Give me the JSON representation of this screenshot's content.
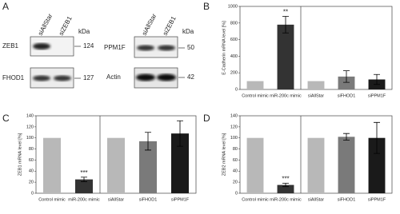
{
  "panel_a": {
    "panel": "A",
    "left": {
      "lanes": [
        "siAllStar",
        "siZEB1"
      ],
      "unit": "kDa",
      "rows": [
        {
          "name": "ZEB1",
          "kda": "124"
        },
        {
          "name": "FHOD1",
          "kda": "127"
        }
      ]
    },
    "right": {
      "lanes": [
        "siAllStar",
        "siZEB1"
      ],
      "unit": "kDa",
      "rows": [
        {
          "name": "PPM1F",
          "kda": "50"
        },
        {
          "name": "Actin",
          "kda": "42"
        }
      ]
    }
  },
  "chart_data": [
    {
      "type": "bar",
      "panel": "B",
      "y_label": "E-Cadherin mRNA level [%]",
      "categories": [
        "Control mimic",
        "miR-200c mimic",
        "siAllStar",
        "siFHOD1",
        "siPPM1F"
      ],
      "values": [
        100,
        780,
        100,
        155,
        120
      ],
      "errors": [
        0,
        100,
        0,
        70,
        60
      ],
      "colors": [
        "#b8b8b8",
        "#333333",
        "#b8b8b8",
        "#7a7a7a",
        "#1a1a1a"
      ],
      "significance": [
        null,
        "**",
        null,
        null,
        null
      ],
      "ylim": [
        0,
        1000
      ],
      "yticks": [
        0,
        200,
        400,
        600,
        800,
        1000
      ]
    },
    {
      "type": "bar",
      "panel": "C",
      "y_label": "ZEB1 mRNA level [%]",
      "categories": [
        "Control mimic",
        "miR-200c mimic",
        "siAllStar",
        "siFHOD1",
        "siPPM1F"
      ],
      "values": [
        100,
        25,
        100,
        94,
        108
      ],
      "errors": [
        0,
        4,
        0,
        16,
        23
      ],
      "colors": [
        "#b8b8b8",
        "#333333",
        "#b8b8b8",
        "#7a7a7a",
        "#1a1a1a"
      ],
      "significance": [
        null,
        "***",
        null,
        null,
        null
      ],
      "ylim": [
        0,
        140
      ],
      "yticks": [
        0,
        20,
        40,
        60,
        80,
        100,
        120,
        140
      ]
    },
    {
      "type": "bar",
      "panel": "D",
      "y_label": "ZEB2 mRNA level [%]",
      "categories": [
        "Control mimic",
        "miR-200c mimic",
        "siAllStar",
        "siFHOD1",
        "siPPM1F"
      ],
      "values": [
        100,
        15,
        100,
        102,
        100
      ],
      "errors": [
        0,
        3,
        0,
        6,
        28
      ],
      "colors": [
        "#b8b8b8",
        "#333333",
        "#b8b8b8",
        "#7a7a7a",
        "#1a1a1a"
      ],
      "significance": [
        null,
        "***",
        null,
        null,
        null
      ],
      "ylim": [
        0,
        140
      ],
      "yticks": [
        0,
        20,
        40,
        60,
        80,
        100,
        120,
        140
      ]
    }
  ]
}
